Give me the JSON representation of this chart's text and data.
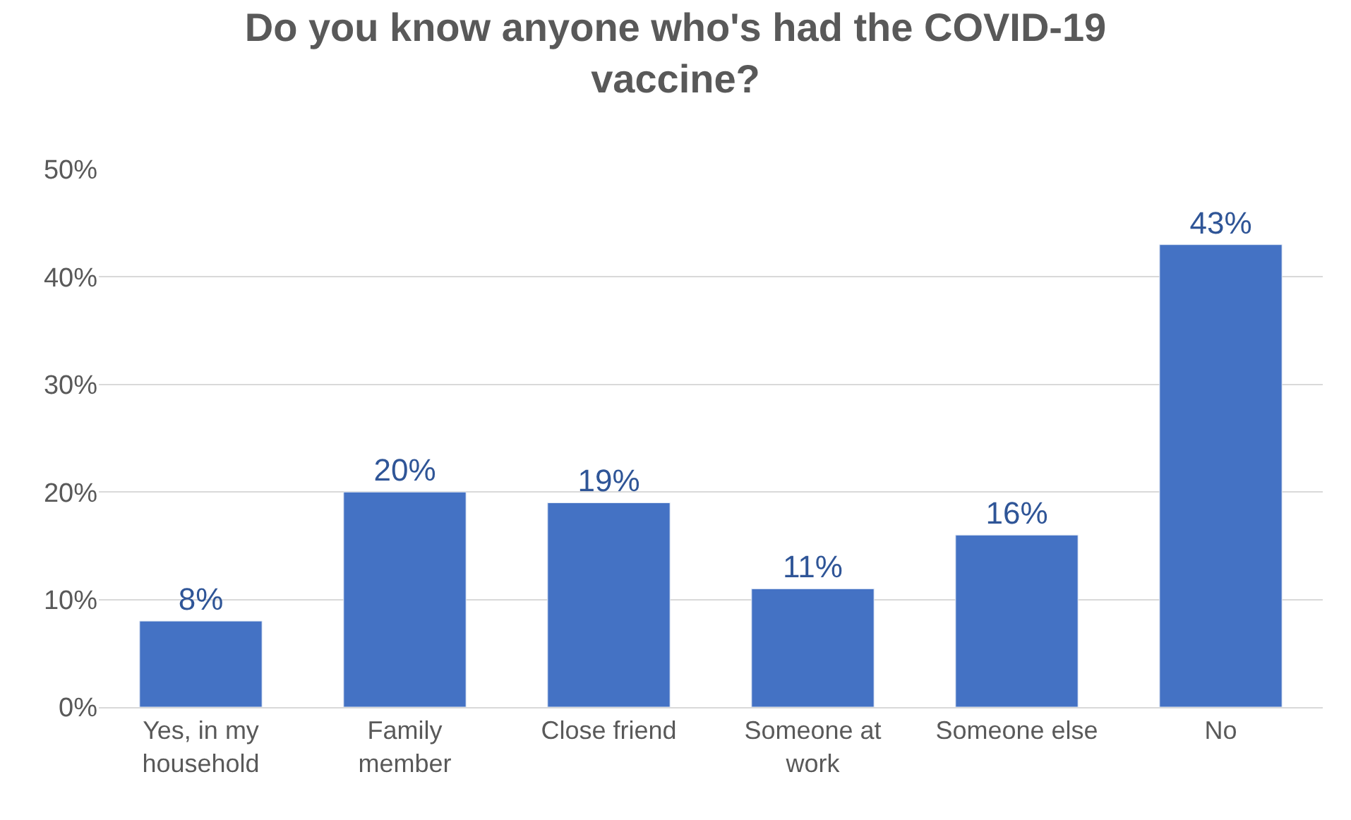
{
  "chart_data": {
    "type": "bar",
    "title": "Do you know anyone who's had the COVID-19 vaccine?",
    "categories": [
      "Yes, in my household",
      "Family member",
      "Close friend",
      "Someone at work",
      "Someone else",
      "No"
    ],
    "values": [
      8,
      20,
      19,
      11,
      16,
      43
    ],
    "value_labels": [
      "8%",
      "20%",
      "19%",
      "11%",
      "16%",
      "43%"
    ],
    "color": "#4472c4",
    "ylim": [
      0,
      50
    ],
    "yticks": [
      {
        "value": 0,
        "label": "0%"
      },
      {
        "value": 10,
        "label": "10%"
      },
      {
        "value": 20,
        "label": "20%"
      },
      {
        "value": 30,
        "label": "30%"
      },
      {
        "value": 40,
        "label": "40%"
      },
      {
        "value": 50,
        "label": "50%"
      }
    ],
    "grid": "y"
  }
}
